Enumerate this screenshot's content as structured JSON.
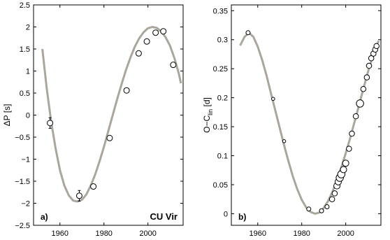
{
  "chart_data": [
    {
      "type": "scatter",
      "panel_label": "a)",
      "annotation": "CU Vir",
      "xlabel": "",
      "ylabel": "ΔP [s]",
      "xlim": [
        1948,
        2016
      ],
      "ylim": [
        -2.5,
        2.5
      ],
      "xticks": [
        1960,
        1980,
        2000
      ],
      "yticks": [
        -2.5,
        -2,
        -1.5,
        -1,
        -0.5,
        0,
        0.5,
        1,
        1.5,
        2,
        2.5
      ],
      "ytick_labels": [
        "−2.5",
        "−2",
        "−1.5",
        "−1",
        "−0.5",
        "0",
        "0.5",
        "1",
        "1.5",
        "2",
        "2.5"
      ],
      "grid": false,
      "series": [
        {
          "kind": "points",
          "x": [
            1955.5,
            1968.8,
            1975.2,
            1982.6,
            1990.3,
            1995.8,
            1999.5,
            2003.5,
            2007.0,
            2011.5
          ],
          "y": [
            -0.18,
            -1.83,
            -1.62,
            -0.52,
            0.56,
            1.4,
            1.67,
            1.87,
            1.9,
            1.14
          ],
          "yerr": [
            0.12,
            0.12,
            0.05,
            0.04,
            0.04,
            0.04,
            0.04,
            0.05,
            0.04,
            0.04
          ]
        },
        {
          "kind": "line",
          "color": "#aaa69c",
          "x": [
            1952,
            1954,
            1956,
            1958,
            1960,
            1962,
            1964,
            1966,
            1968,
            1970,
            1972,
            1974,
            1976,
            1978,
            1980,
            1982,
            1984,
            1986,
            1988,
            1990,
            1992,
            1994,
            1996,
            1998,
            2000,
            2002,
            2004,
            2006,
            2008,
            2010,
            2012,
            2014,
            2015
          ],
          "y": [
            1.5,
            0.6,
            -0.15,
            -0.75,
            -1.25,
            -1.6,
            -1.82,
            -1.94,
            -1.96,
            -1.92,
            -1.8,
            -1.6,
            -1.35,
            -1.05,
            -0.72,
            -0.36,
            0.0,
            0.36,
            0.7,
            1.02,
            1.3,
            1.55,
            1.74,
            1.88,
            1.97,
            2.0,
            1.98,
            1.9,
            1.77,
            1.58,
            1.3,
            0.95,
            0.72
          ]
        }
      ]
    },
    {
      "type": "scatter",
      "panel_label": "b)",
      "xlabel": "",
      "ylabel": "O−C",
      "ylabel_sub": "lin",
      "ylabel_unit": "[d]",
      "xlim": [
        1948,
        2016
      ],
      "ylim": [
        -0.02,
        0.36
      ],
      "xticks": [
        1960,
        1980,
        2000
      ],
      "yticks": [
        0,
        0.05,
        0.1,
        0.15,
        0.2,
        0.25,
        0.3,
        0.35
      ],
      "ytick_labels": [
        "0",
        "0.05",
        "0.1",
        "0.15",
        "0.2",
        "0.25",
        "0.3",
        "0.35"
      ],
      "grid": false,
      "series": [
        {
          "kind": "points",
          "x": [
            1955.6,
            1967.0,
            1972.0,
            1983.2,
            1989.0,
            1991.5,
            1993.8,
            1995.0,
            1996.0,
            1996.6,
            1997.3,
            1998.0,
            1999.0,
            2000.0,
            2001.5,
            2002.8,
            2004.6,
            2006.5,
            2008.0,
            2009.6,
            2010.6,
            2011.6,
            2012.6,
            2013.4,
            2014.0
          ],
          "y": [
            0.312,
            0.198,
            0.125,
            0.008,
            0.005,
            0.012,
            0.025,
            0.035,
            0.048,
            0.055,
            0.062,
            0.068,
            0.076,
            0.087,
            0.112,
            0.138,
            0.168,
            0.19,
            0.215,
            0.235,
            0.255,
            0.268,
            0.276,
            0.283,
            0.289
          ],
          "size": [
            4,
            3,
            3,
            4,
            4,
            4,
            5,
            5,
            6,
            6,
            7,
            7,
            6,
            6,
            5,
            5,
            5,
            7,
            5,
            5,
            5,
            5,
            5,
            5,
            5
          ]
        },
        {
          "kind": "line",
          "color": "#aaa69c",
          "x": [
            1952,
            1954,
            1956,
            1958,
            1960,
            1962,
            1964,
            1966,
            1968,
            1970,
            1972,
            1974,
            1976,
            1978,
            1980,
            1982,
            1984,
            1986,
            1988,
            1990,
            1992,
            1994,
            1996,
            1998,
            2000,
            2002,
            2004,
            2006,
            2008,
            2010,
            2012,
            2014,
            2015
          ],
          "y": [
            0.29,
            0.305,
            0.312,
            0.305,
            0.288,
            0.265,
            0.238,
            0.208,
            0.178,
            0.148,
            0.118,
            0.09,
            0.064,
            0.042,
            0.024,
            0.011,
            0.003,
            0.0,
            0.002,
            0.01,
            0.022,
            0.038,
            0.058,
            0.08,
            0.104,
            0.13,
            0.158,
            0.186,
            0.215,
            0.243,
            0.268,
            0.29,
            0.298
          ]
        }
      ]
    }
  ]
}
